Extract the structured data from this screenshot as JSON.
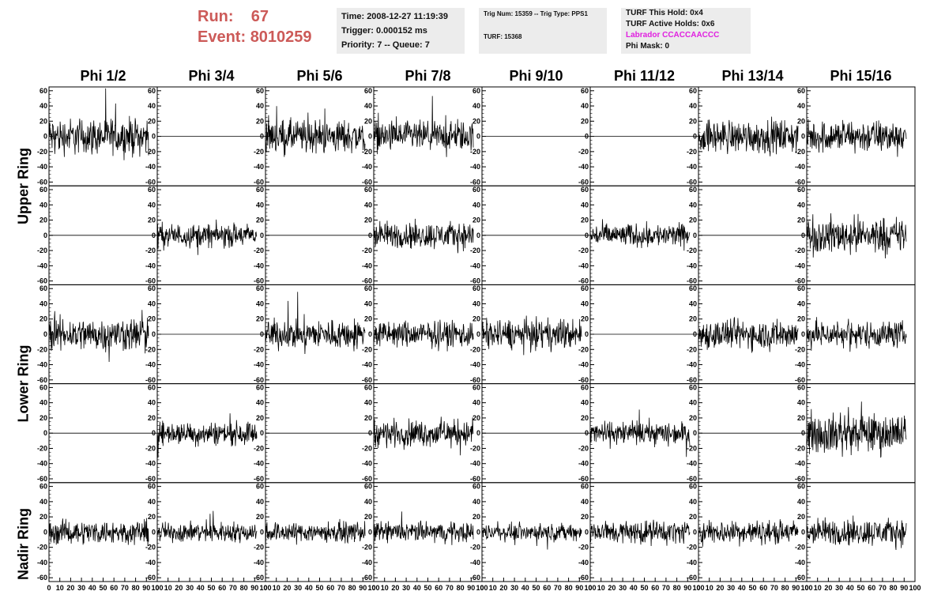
{
  "header": {
    "run_label": "Run:",
    "run_value": "67",
    "event_label": "Event:",
    "event_value": "8010259",
    "time_text": "Time: 2008-12-27 11:19:39",
    "trigger_text": "Trigger: 0.000152 ms",
    "priority_text": "Priority: 7 -- Queue: 7",
    "trig_num_text": "Trig Num: 15359 -- Trig Type: PPS1",
    "turf_text": "TURF: 15368",
    "turf_hold_text": "TURF This Hold: 0x4",
    "turf_active_text": "TURF Active Holds: 0x6",
    "labrador_text": "Labrador CCACCAACCC",
    "phi_mask_text": "Phi Mask: 0",
    "labrador_color": "#e020e0",
    "run_color": "#cc5a58"
  },
  "columns": [
    "Phi 1/2",
    "Phi 3/4",
    "Phi 5/6",
    "Phi 7/8",
    "Phi 9/10",
    "Phi 11/12",
    "Phi 13/14",
    "Phi 15/16"
  ],
  "ring_labels": [
    "Upper Ring",
    "Lower Ring",
    "Nadir Ring"
  ],
  "chart_data": {
    "type": "line",
    "grid": false,
    "ylim": [
      -65,
      65
    ],
    "xlim": [
      0,
      100
    ],
    "yticks": [
      -60,
      -40,
      -20,
      0,
      20,
      40,
      60
    ],
    "xticks": [
      0,
      10,
      20,
      30,
      40,
      50,
      60,
      70,
      80,
      90,
      100
    ],
    "row_count": 5,
    "col_count": 8,
    "flat_panels": [
      [
        0,
        1
      ],
      [
        0,
        4
      ],
      [
        0,
        5
      ],
      [
        1,
        0
      ],
      [
        1,
        2
      ],
      [
        1,
        4
      ],
      [
        1,
        6
      ],
      [
        2,
        1
      ],
      [
        2,
        5
      ],
      [
        3,
        0
      ],
      [
        3,
        2
      ],
      [
        3,
        4
      ],
      [
        3,
        6
      ]
    ],
    "panel_amplitude": [
      [
        22,
        0,
        20,
        18,
        22,
        0,
        20,
        20
      ],
      [
        0,
        14,
        0,
        16,
        0,
        14,
        0,
        22
      ],
      [
        20,
        0,
        18,
        16,
        18,
        0,
        18,
        16
      ],
      [
        0,
        14,
        0,
        16,
        0,
        14,
        0,
        24
      ],
      [
        14,
        12,
        12,
        12,
        10,
        14,
        14,
        16
      ]
    ]
  }
}
